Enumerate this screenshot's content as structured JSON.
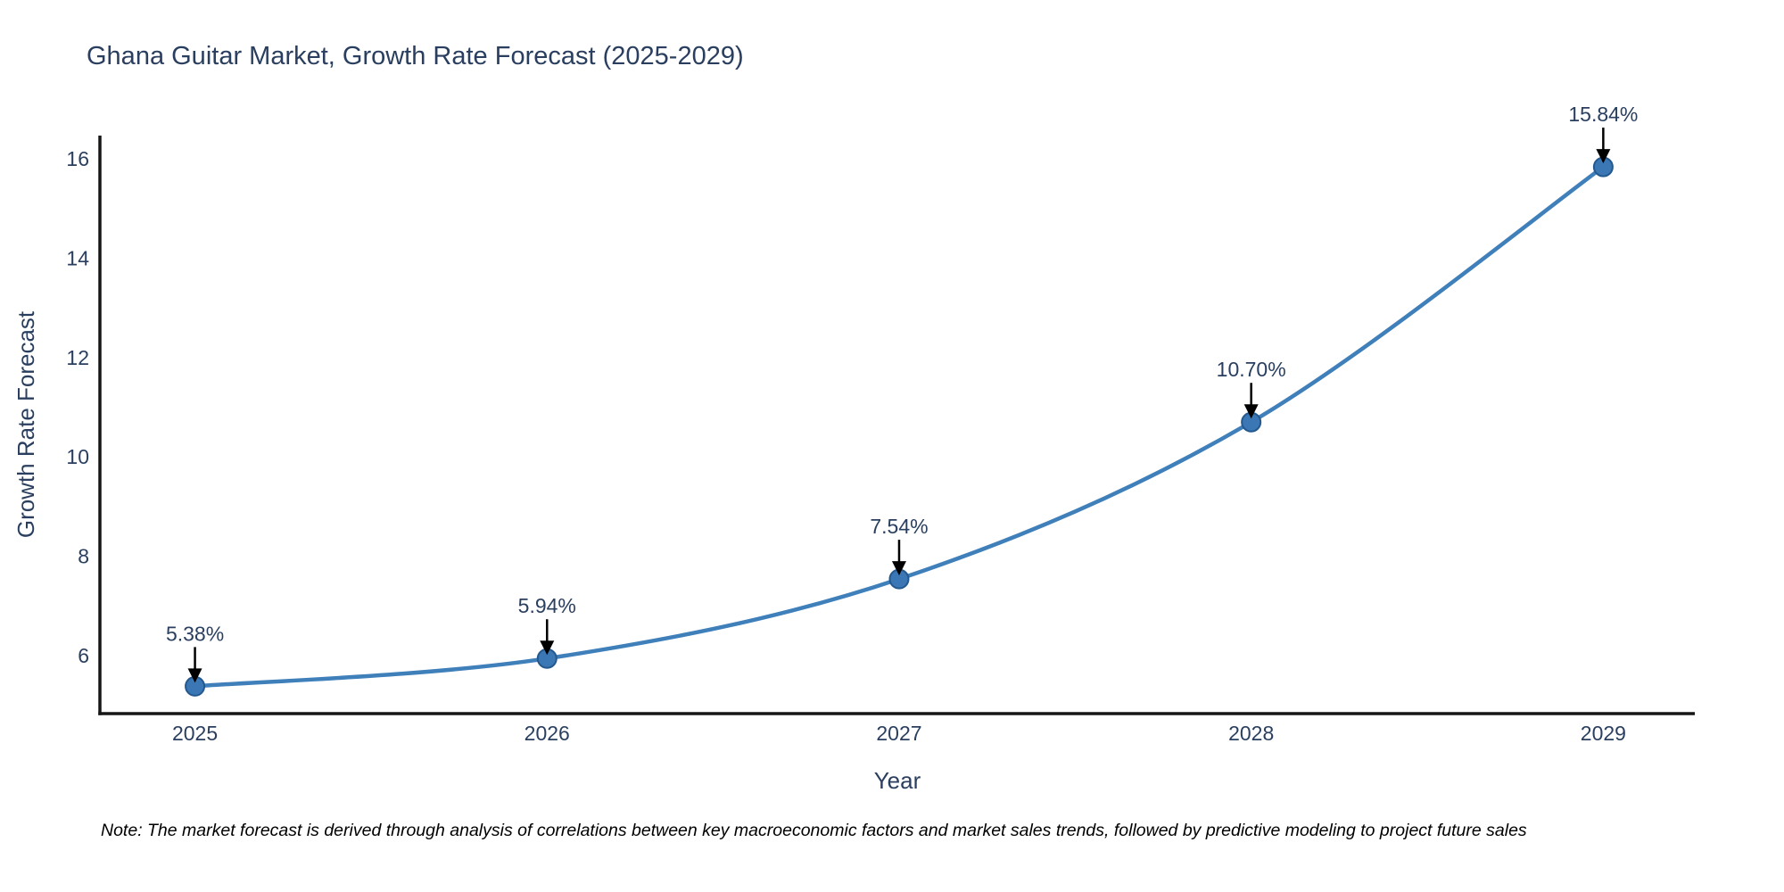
{
  "chart_data": {
    "type": "line",
    "title": "Ghana Guitar Market, Growth Rate Forecast (2025-2029)",
    "xlabel": "Year",
    "ylabel": "Growth Rate Forecast",
    "x": [
      2025,
      2026,
      2027,
      2028,
      2029
    ],
    "series": [
      {
        "name": "Growth Rate Forecast",
        "values": [
          5.38,
          5.94,
          7.54,
          10.7,
          15.84
        ]
      }
    ],
    "point_labels": [
      "5.38%",
      "5.94%",
      "7.54%",
      "10.70%",
      "15.84%"
    ],
    "xticks": [
      "2025",
      "2026",
      "2027",
      "2028",
      "2029"
    ],
    "yticks": [
      6,
      8,
      10,
      12,
      14,
      16
    ],
    "xlim": [
      2024.73,
      2029.26
    ],
    "ylim": [
      4.83,
      16.47
    ],
    "grid": false,
    "legend": false,
    "line_shape": "spline",
    "annotation_arrows": "down-arrow-to-point",
    "note": "Note: The market forecast is derived through analysis of correlations between key macroeconomic factors and market sales trends, followed by predictive modeling to project future sales",
    "colors": {
      "line": "#3f7fba",
      "marker_fill": "#3a77b4",
      "marker_edge": "#24598f",
      "text": "#2a3f5f",
      "axis_line": "#161616",
      "arrow": "#000000",
      "note_text": "#000000",
      "background": "#ffffff"
    }
  }
}
